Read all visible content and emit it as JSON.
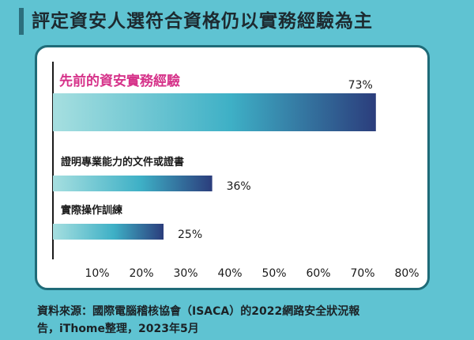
{
  "title": "評定資安人選符合資格仍以實務經驗為主",
  "footer": {
    "line1": "資料來源：國際電腦稽核協會（ISACA）的2022網路安全狀況報",
    "line2": "告，iThome整理，2023年5月"
  },
  "colors": {
    "bar_start": "#a6dfe0",
    "bar_mid": "#3eb0c6",
    "bar_end": "#2b3d7c",
    "highlight_label": "#d6338a",
    "background": "#5fc3d2",
    "card_border": "#1f6b78"
  },
  "chart_data": {
    "type": "bar",
    "orientation": "horizontal",
    "categories": [
      "先前的資安實務經驗",
      "證明專業能力的文件或證書",
      "實際操作訓練"
    ],
    "values": [
      73,
      36,
      25
    ],
    "value_labels": [
      "73%",
      "36%",
      "25%"
    ],
    "xlim": [
      0,
      80
    ],
    "x_ticks": [
      "10%",
      "20%",
      "30%",
      "40%",
      "50%",
      "60%",
      "70%",
      "80%"
    ],
    "grid": false,
    "title": "",
    "xlabel": "",
    "ylabel": ""
  }
}
